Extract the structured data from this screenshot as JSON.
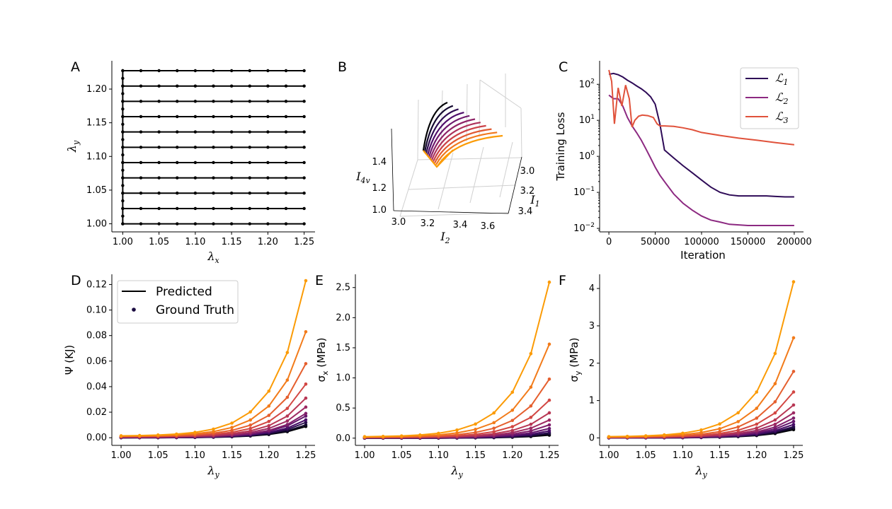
{
  "palette": [
    "#000004",
    "#1b0c41",
    "#4a0c6b",
    "#781c6d",
    "#a52c60",
    "#cf4446",
    "#ed6925",
    "#fb9b06",
    "#f7d13d"
  ],
  "chart_data": [
    {
      "panel": "A",
      "type": "scatter",
      "xlabel": "λx",
      "ylabel": "λy",
      "xlim": [
        0.985,
        1.265
      ],
      "ylim": [
        0.988,
        1.242
      ],
      "xticks": [
        "1.00",
        "1.05",
        "1.10",
        "1.15",
        "1.20",
        "1.25"
      ],
      "yticks": [
        "1.00",
        "1.05",
        "1.10",
        "1.15",
        "1.20"
      ],
      "x": [
        1.0,
        1.025,
        1.05,
        1.075,
        1.1,
        1.125,
        1.15,
        1.175,
        1.2,
        1.225,
        1.25
      ],
      "y": [
        1.0,
        1.0227,
        1.0455,
        1.0682,
        1.0909,
        1.1136,
        1.1364,
        1.1591,
        1.1818,
        1.2045,
        1.2273
      ],
      "description_points": "grid of points at every (x,y) plus vertical path at x=1.00"
    },
    {
      "panel": "B",
      "type": "line",
      "xlabel": "I2",
      "ylabel": "I4v",
      "zlabel": "I1",
      "x_ticks": [
        "3.0",
        "3.2",
        "3.4",
        "3.6"
      ],
      "y_ticks": [
        "3.0",
        "3.2",
        "3.4"
      ],
      "z_ticks": [
        "1.0",
        "1.2",
        "1.4"
      ],
      "series_count": 11
    },
    {
      "panel": "C",
      "type": "line",
      "xlabel": "Iteration",
      "ylabel": "Training Loss",
      "yscale": "log",
      "xlim": [
        -10000,
        210000
      ],
      "ylim": [
        0.008,
        450
      ],
      "xticks": [
        "0",
        "50000",
        "100000",
        "150000",
        "200000"
      ],
      "yticks": [
        "10^2",
        "10^1",
        "10^0",
        "10^-1",
        "10^-2"
      ],
      "legend": "top-right",
      "series": [
        {
          "name": "ℒ1",
          "color": "#2e0b57",
          "x": [
            0,
            5000,
            10000,
            15000,
            20000,
            25000,
            30000,
            35000,
            40000,
            45000,
            50000,
            55000,
            60000,
            70000,
            80000,
            90000,
            100000,
            110000,
            120000,
            130000,
            140000,
            150000,
            160000,
            170000,
            180000,
            190000,
            200000
          ],
          "y": [
            190,
            200,
            185,
            160,
            130,
            110,
            90,
            75,
            60,
            45,
            28,
            8,
            1.5,
            0.9,
            0.55,
            0.35,
            0.22,
            0.14,
            0.1,
            0.085,
            0.08,
            0.08,
            0.08,
            0.08,
            0.077,
            0.075,
            0.075
          ]
        },
        {
          "name": "ℒ2",
          "color": "#8c2981",
          "x": [
            0,
            5000,
            10000,
            15000,
            20000,
            25000,
            30000,
            35000,
            40000,
            45000,
            50000,
            55000,
            60000,
            70000,
            80000,
            90000,
            100000,
            110000,
            120000,
            130000,
            140000,
            150000,
            160000,
            170000,
            180000,
            190000,
            200000
          ],
          "y": [
            50,
            40,
            40,
            25,
            12,
            7,
            4.5,
            2.8,
            1.6,
            0.9,
            0.5,
            0.3,
            0.2,
            0.09,
            0.05,
            0.032,
            0.022,
            0.017,
            0.015,
            0.013,
            0.0125,
            0.012,
            0.012,
            0.012,
            0.012,
            0.012,
            0.012
          ]
        },
        {
          "name": "ℒ3",
          "color": "#e0523b",
          "x": [
            0,
            3000,
            6000,
            10000,
            14000,
            18000,
            22000,
            25000,
            28000,
            32000,
            36000,
            42000,
            48000,
            52000,
            55000,
            60000,
            70000,
            80000,
            90000,
            100000,
            120000,
            140000,
            160000,
            180000,
            200000
          ],
          "y": [
            250,
            120,
            8,
            80,
            25,
            95,
            40,
            6.5,
            10,
            13,
            14,
            13.5,
            12,
            8,
            7,
            7,
            6.8,
            6.2,
            5.5,
            4.6,
            3.8,
            3.2,
            2.8,
            2.4,
            2.1
          ]
        }
      ]
    },
    {
      "panel": "D",
      "type": "line",
      "xlabel": "λy",
      "ylabel": "Ψ (KJ)",
      "xlim": [
        0.9875,
        1.2625
      ],
      "ylim": [
        -0.006,
        0.128
      ],
      "xticks": [
        "1.00",
        "1.05",
        "1.10",
        "1.15",
        "1.20",
        "1.25"
      ],
      "yticks": [
        "0.00",
        "0.02",
        "0.04",
        "0.06",
        "0.08",
        "0.10",
        "0.12"
      ],
      "legend_entries": [
        "Predicted",
        "Ground Truth"
      ],
      "legend": "top-left",
      "x": [
        1.0,
        1.025,
        1.05,
        1.075,
        1.1,
        1.125,
        1.15,
        1.175,
        1.2,
        1.225,
        1.25
      ],
      "final_values": [
        0.0088,
        0.01,
        0.012,
        0.014,
        0.017,
        0.019,
        0.024,
        0.031,
        0.042,
        0.058,
        0.083,
        0.123
      ],
      "start_values": [
        0.0,
        0.0,
        0.0,
        0.0001,
        0.0002,
        0.0003,
        0.0005,
        0.0007,
        0.0009,
        0.0011,
        0.0013,
        0.0015
      ]
    },
    {
      "panel": "E",
      "type": "line",
      "xlabel": "λy",
      "ylabel": "σx (MPa)",
      "xlim": [
        0.9875,
        1.2625
      ],
      "ylim": [
        -0.12,
        2.72
      ],
      "xticks": [
        "1.00",
        "1.05",
        "1.10",
        "1.15",
        "1.20",
        "1.25"
      ],
      "yticks": [
        "0.0",
        "0.5",
        "1.0",
        "1.5",
        "2.0",
        "2.5"
      ],
      "x": [
        1.0,
        1.025,
        1.05,
        1.075,
        1.1,
        1.125,
        1.15,
        1.175,
        1.2,
        1.225,
        1.25
      ],
      "final_values": [
        0.05,
        0.07,
        0.09,
        0.12,
        0.16,
        0.22,
        0.3,
        0.42,
        0.63,
        0.98,
        1.56,
        2.59
      ],
      "start_values": [
        0.0,
        0.0,
        0.0,
        0.002,
        0.004,
        0.006,
        0.008,
        0.01,
        0.013,
        0.016,
        0.02,
        0.024
      ]
    },
    {
      "panel": "F",
      "type": "line",
      "xlabel": "λy",
      "ylabel": "σy (MPa)",
      "xlim": [
        0.9875,
        1.2625
      ],
      "ylim": [
        -0.2,
        4.38
      ],
      "xticks": [
        "1.00",
        "1.05",
        "1.10",
        "1.15",
        "1.20",
        "1.25"
      ],
      "yticks": [
        "0",
        "1",
        "2",
        "3",
        "4"
      ],
      "x": [
        1.0,
        1.025,
        1.05,
        1.075,
        1.1,
        1.125,
        1.15,
        1.175,
        1.2,
        1.225,
        1.25
      ],
      "final_values": [
        0.22,
        0.26,
        0.3,
        0.36,
        0.44,
        0.53,
        0.67,
        0.88,
        1.23,
        1.78,
        2.68,
        4.18
      ],
      "start_values": [
        0.0,
        0.0,
        0.0,
        0.003,
        0.006,
        0.009,
        0.012,
        0.015,
        0.019,
        0.023,
        0.028,
        0.034
      ]
    }
  ]
}
